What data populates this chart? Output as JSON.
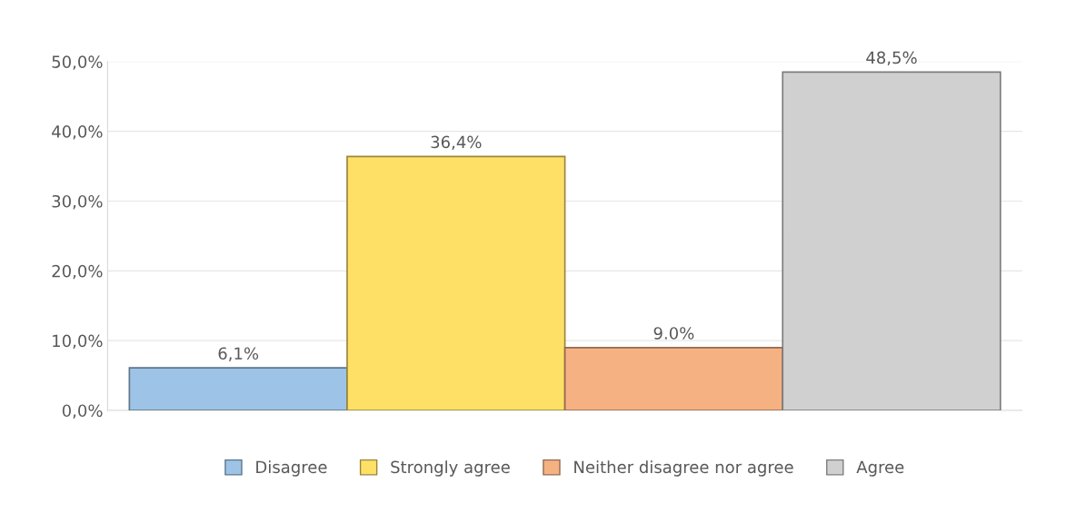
{
  "chart_data": {
    "type": "bar",
    "categories": [
      null,
      null,
      null,
      null
    ],
    "series": [
      {
        "name": "Disagree",
        "color": "#9dc3e6",
        "values": [
          6.1,
          null,
          null,
          null
        ],
        "value_labels": [
          "6,1%",
          null,
          null,
          null
        ]
      },
      {
        "name": "Strongly agree",
        "color": "#ffe066",
        "values": [
          null,
          36.4,
          null,
          null
        ],
        "value_labels": [
          null,
          "36,4%",
          null,
          null
        ]
      },
      {
        "name": "Neither disagree nor agree",
        "color": "#f6b183",
        "values": [
          null,
          null,
          9.0,
          null
        ],
        "value_labels": [
          null,
          null,
          "9.0%",
          null
        ]
      },
      {
        "name": "Agree",
        "color": "#d0d0d0",
        "values": [
          null,
          null,
          null,
          48.5
        ],
        "value_labels": [
          null,
          null,
          null,
          "48,5%"
        ]
      }
    ],
    "ylim": [
      0,
      50
    ],
    "yticks": [
      {
        "value": 0,
        "label": "0,0%"
      },
      {
        "value": 10,
        "label": "10,0%"
      },
      {
        "value": 20,
        "label": "20,0%"
      },
      {
        "value": 30,
        "label": "30,0%"
      },
      {
        "value": 40,
        "label": "40,0%"
      },
      {
        "value": 50,
        "label": "50,0%"
      }
    ],
    "grid": "y",
    "legend": "bottom"
  }
}
